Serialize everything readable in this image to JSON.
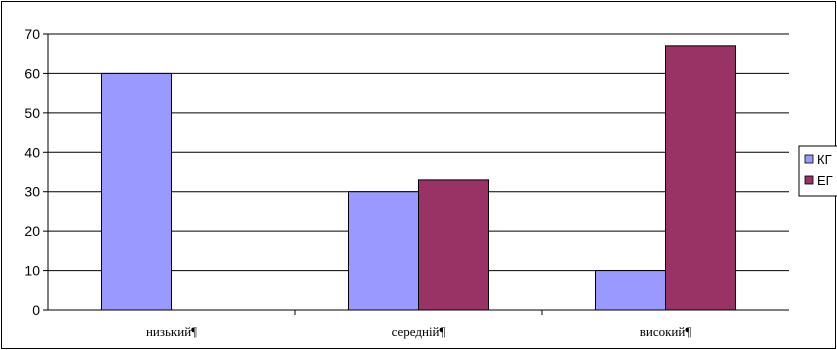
{
  "chart_data": {
    "type": "bar",
    "categories": [
      "низький¶",
      "середній¶",
      "високий¶"
    ],
    "series": [
      {
        "name": "КГ",
        "values": [
          60,
          30,
          10
        ],
        "color": "#9999ff"
      },
      {
        "name": "ЕГ",
        "values": [
          0,
          33,
          67
        ],
        "color": "#993366"
      }
    ],
    "title": "",
    "xlabel": "",
    "ylabel": "",
    "ylim": [
      0,
      70
    ],
    "yticks": [
      0,
      10,
      20,
      30,
      40,
      50,
      60,
      70
    ],
    "grid": true,
    "legend": "right"
  }
}
